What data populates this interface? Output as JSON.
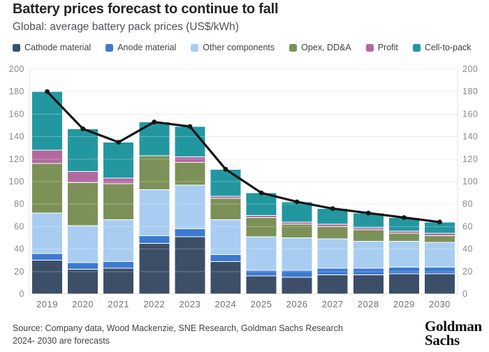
{
  "header": {
    "title": "Battery prices forecast to continue to fall",
    "subtitle": "Global: average battery pack prices (US$/kWh)"
  },
  "chart_data": {
    "type": "bar",
    "subtype": "stacked-bar-with-line",
    "categories": [
      "2019",
      "2020",
      "2021",
      "2022",
      "2023",
      "2024",
      "2025",
      "2026",
      "2027",
      "2028",
      "2029",
      "2030"
    ],
    "series": [
      {
        "name": "Cathode material",
        "color": "#3c4f67",
        "values": [
          30,
          22,
          23,
          45,
          51,
          29,
          16,
          15,
          17,
          17,
          18,
          18
        ]
      },
      {
        "name": "Anode material",
        "color": "#3c7ad1",
        "values": [
          6,
          6,
          6,
          7,
          7,
          6,
          5,
          6,
          6,
          6,
          6,
          6
        ]
      },
      {
        "name": "Other components",
        "color": "#a9cdf1",
        "values": [
          36,
          33,
          37,
          41,
          39,
          31,
          30,
          29,
          26,
          24,
          23,
          22
        ]
      },
      {
        "name": "Opex, DD&A",
        "color": "#7c9158",
        "values": [
          44,
          38,
          32,
          30,
          20,
          19,
          17,
          12,
          11,
          10,
          7,
          6
        ]
      },
      {
        "name": "Profit",
        "color": "#b2699e",
        "values": [
          12,
          10,
          5,
          0,
          5,
          2,
          2,
          2,
          2,
          2,
          2,
          2
        ]
      },
      {
        "name": "Cell-to-pack",
        "color": "#2397a0",
        "values": [
          52,
          38,
          32,
          30,
          27,
          24,
          20,
          18,
          14,
          13,
          12,
          10
        ]
      }
    ],
    "line": {
      "name": "Battery pack price",
      "color": "#151515",
      "values": [
        180,
        147,
        135,
        153,
        149,
        111,
        90,
        82,
        76,
        72,
        68,
        64
      ]
    },
    "ylim": [
      0,
      200
    ],
    "yticks": [
      0,
      20,
      40,
      60,
      80,
      100,
      120,
      140,
      160,
      180,
      200
    ],
    "y_axis_sides": "both",
    "grid": true,
    "legend_position": "top"
  },
  "footer": {
    "source_line1": "Source: Company data, Wood Mackenzie, SNE Research, Goldman Sachs Research",
    "source_line2": "2024- 2030 are forecasts",
    "logo_line1": "Goldman",
    "logo_line2": "Sachs"
  }
}
